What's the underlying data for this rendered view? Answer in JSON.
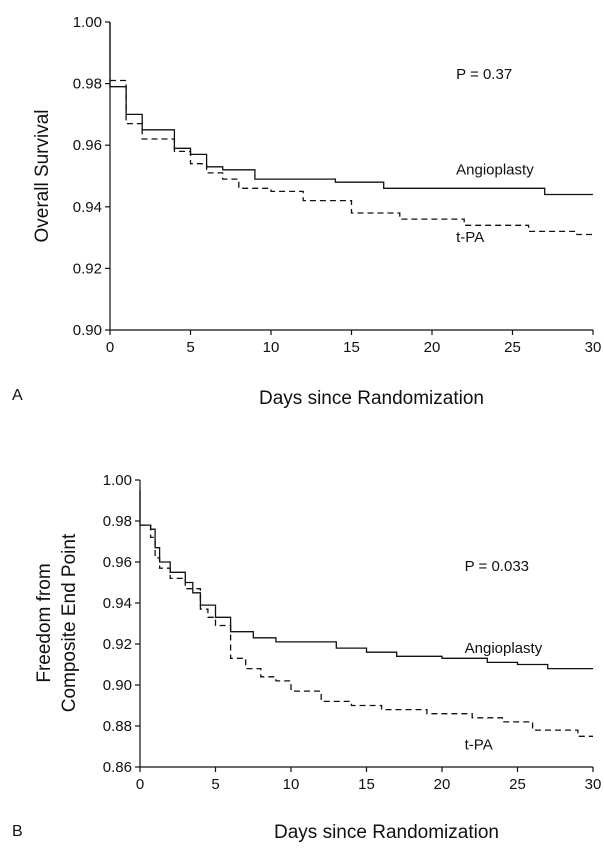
{
  "chart_data": [
    {
      "panel_label": "A",
      "type": "line",
      "xlabel": "Days since Randomization",
      "ylabel": [
        "Overall Survival"
      ],
      "xlim": [
        0,
        30
      ],
      "ylim": [
        0.9,
        1.0
      ],
      "x_ticks": [
        0,
        5,
        10,
        15,
        20,
        25,
        30
      ],
      "y_ticks": [
        "0.90",
        "0.92",
        "0.94",
        "0.96",
        "0.98",
        "1.00"
      ],
      "grid": false,
      "annotation": "P = 0.37",
      "series": [
        {
          "name": "Angioplasty",
          "line_style": "solid",
          "step_points": [
            [
              0,
              1.0
            ],
            [
              0,
              0.979
            ],
            [
              1,
              0.979
            ],
            [
              1,
              0.97
            ],
            [
              2,
              0.97
            ],
            [
              2,
              0.965
            ],
            [
              4,
              0.965
            ],
            [
              4,
              0.959
            ],
            [
              5,
              0.959
            ],
            [
              5,
              0.957
            ],
            [
              6,
              0.957
            ],
            [
              6,
              0.953
            ],
            [
              7,
              0.953
            ],
            [
              7,
              0.952
            ],
            [
              9,
              0.952
            ],
            [
              9,
              0.949
            ],
            [
              14,
              0.949
            ],
            [
              14,
              0.948
            ],
            [
              17,
              0.948
            ],
            [
              17,
              0.946
            ],
            [
              27,
              0.946
            ],
            [
              27,
              0.944
            ],
            [
              30,
              0.944
            ]
          ]
        },
        {
          "name": "t-PA",
          "line_style": "dashed",
          "step_points": [
            [
              0,
              0.981
            ],
            [
              1,
              0.981
            ],
            [
              1,
              0.967
            ],
            [
              2,
              0.967
            ],
            [
              2,
              0.962
            ],
            [
              4,
              0.962
            ],
            [
              4,
              0.958
            ],
            [
              5,
              0.958
            ],
            [
              5,
              0.954
            ],
            [
              6,
              0.954
            ],
            [
              6,
              0.951
            ],
            [
              7,
              0.951
            ],
            [
              7,
              0.949
            ],
            [
              8,
              0.949
            ],
            [
              8,
              0.946
            ],
            [
              10,
              0.946
            ],
            [
              10,
              0.945
            ],
            [
              12,
              0.945
            ],
            [
              12,
              0.942
            ],
            [
              15,
              0.942
            ],
            [
              15,
              0.938
            ],
            [
              18,
              0.938
            ],
            [
              18,
              0.936
            ],
            [
              22,
              0.936
            ],
            [
              22,
              0.934
            ],
            [
              26,
              0.934
            ],
            [
              26,
              0.932
            ],
            [
              29,
              0.932
            ],
            [
              29,
              0.931
            ],
            [
              30,
              0.931
            ]
          ]
        }
      ],
      "series_labels": [
        {
          "text": "Angioplasty",
          "x": 21.5,
          "y": 0.9505
        },
        {
          "text": "t-PA",
          "x": 21.5,
          "y": 0.9285
        }
      ],
      "annotation_at": {
        "x": 21.5,
        "y": 0.9815
      }
    },
    {
      "panel_label": "B",
      "type": "line",
      "xlabel": "Days since Randomization",
      "ylabel": [
        "Freedom from",
        "Composite End Point"
      ],
      "xlim": [
        0,
        30
      ],
      "ylim": [
        0.86,
        1.0
      ],
      "x_ticks": [
        0,
        5,
        10,
        15,
        20,
        25,
        30
      ],
      "y_ticks": [
        "0.86",
        "0.88",
        "0.90",
        "0.92",
        "0.94",
        "0.96",
        "0.98",
        "1.00"
      ],
      "grid": false,
      "annotation": "P = 0.033",
      "series": [
        {
          "name": "Angioplasty",
          "line_style": "solid",
          "step_points": [
            [
              0,
              0.995
            ],
            [
              0,
              0.978
            ],
            [
              0.7,
              0.978
            ],
            [
              0.7,
              0.976
            ],
            [
              1,
              0.976
            ],
            [
              1,
              0.967
            ],
            [
              1.3,
              0.967
            ],
            [
              1.3,
              0.96
            ],
            [
              2,
              0.96
            ],
            [
              2,
              0.955
            ],
            [
              3,
              0.955
            ],
            [
              3,
              0.95
            ],
            [
              3.5,
              0.95
            ],
            [
              3.5,
              0.945
            ],
            [
              4,
              0.945
            ],
            [
              4,
              0.939
            ],
            [
              5,
              0.939
            ],
            [
              5,
              0.933
            ],
            [
              6,
              0.933
            ],
            [
              6,
              0.926
            ],
            [
              7.5,
              0.926
            ],
            [
              7.5,
              0.923
            ],
            [
              9,
              0.923
            ],
            [
              9,
              0.921
            ],
            [
              13,
              0.921
            ],
            [
              13,
              0.918
            ],
            [
              15,
              0.918
            ],
            [
              15,
              0.916
            ],
            [
              17,
              0.916
            ],
            [
              17,
              0.914
            ],
            [
              20,
              0.914
            ],
            [
              20,
              0.913
            ],
            [
              23,
              0.913
            ],
            [
              23,
              0.911
            ],
            [
              25,
              0.911
            ],
            [
              25,
              0.91
            ],
            [
              27,
              0.91
            ],
            [
              27,
              0.908
            ],
            [
              30,
              0.908
            ]
          ]
        },
        {
          "name": "t-PA",
          "line_style": "dashed",
          "step_points": [
            [
              0,
              0.978
            ],
            [
              0.7,
              0.978
            ],
            [
              0.7,
              0.972
            ],
            [
              1,
              0.972
            ],
            [
              1,
              0.962
            ],
            [
              1.3,
              0.962
            ],
            [
              1.3,
              0.957
            ],
            [
              2,
              0.957
            ],
            [
              2,
              0.952
            ],
            [
              3,
              0.952
            ],
            [
              3,
              0.947
            ],
            [
              4,
              0.947
            ],
            [
              4,
              0.937
            ],
            [
              4.5,
              0.937
            ],
            [
              4.5,
              0.933
            ],
            [
              5,
              0.933
            ],
            [
              5,
              0.929
            ],
            [
              6,
              0.929
            ],
            [
              6,
              0.913
            ],
            [
              7,
              0.913
            ],
            [
              7,
              0.908
            ],
            [
              8,
              0.908
            ],
            [
              8,
              0.904
            ],
            [
              9,
              0.904
            ],
            [
              9,
              0.902
            ],
            [
              10,
              0.902
            ],
            [
              10,
              0.897
            ],
            [
              12,
              0.897
            ],
            [
              12,
              0.892
            ],
            [
              14,
              0.892
            ],
            [
              14,
              0.89
            ],
            [
              16,
              0.89
            ],
            [
              16,
              0.888
            ],
            [
              19,
              0.888
            ],
            [
              19,
              0.886
            ],
            [
              22,
              0.886
            ],
            [
              22,
              0.884
            ],
            [
              24,
              0.884
            ],
            [
              24,
              0.882
            ],
            [
              26,
              0.882
            ],
            [
              26,
              0.878
            ],
            [
              29,
              0.878
            ],
            [
              29,
              0.875
            ],
            [
              30,
              0.875
            ]
          ]
        }
      ],
      "series_labels": [
        {
          "text": "Angioplasty",
          "x": 21.5,
          "y": 0.9155
        },
        {
          "text": "t-PA",
          "x": 21.5,
          "y": 0.8685
        }
      ],
      "annotation_at": {
        "x": 21.5,
        "y": 0.9555
      }
    }
  ]
}
